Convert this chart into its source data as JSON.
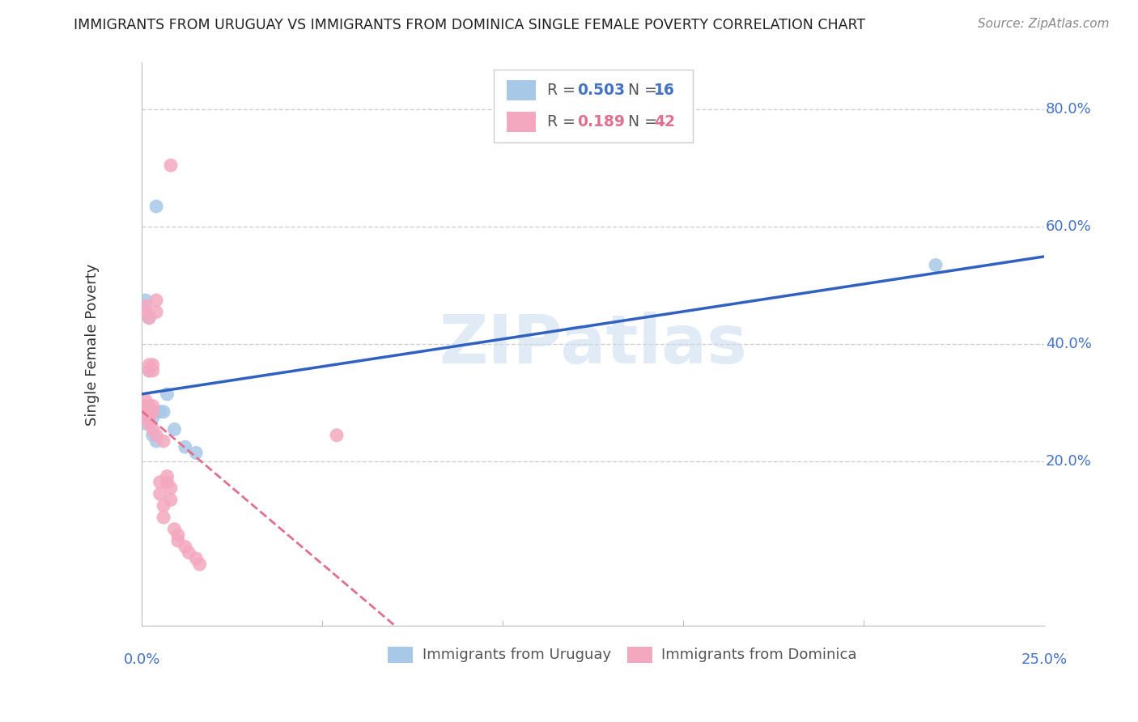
{
  "title": "IMMIGRANTS FROM URUGUAY VS IMMIGRANTS FROM DOMINICA SINGLE FEMALE POVERTY CORRELATION CHART",
  "source": "Source: ZipAtlas.com",
  "ylabel": "Single Female Poverty",
  "xlim": [
    0.0,
    0.25
  ],
  "ylim": [
    -0.08,
    0.88
  ],
  "grid_color": "#d0d0d0",
  "background_color": "#ffffff",
  "uruguay_color": "#a8c8e8",
  "dominica_color": "#f4a8c0",
  "uruguay_line_color": "#3060c0",
  "dominica_line_color": "#e07090",
  "legend_R_uruguay": "0.503",
  "legend_N_uruguay": "16",
  "legend_R_dominica": "0.189",
  "legend_N_dominica": "42",
  "watermark": "ZIPatlas",
  "uruguay_x": [
    0.0005,
    0.001,
    0.001,
    0.002,
    0.002,
    0.003,
    0.003,
    0.004,
    0.005,
    0.006,
    0.007,
    0.009,
    0.012,
    0.015,
    0.22,
    0.004
  ],
  "uruguay_y": [
    0.265,
    0.475,
    0.275,
    0.445,
    0.355,
    0.275,
    0.245,
    0.235,
    0.285,
    0.285,
    0.315,
    0.255,
    0.225,
    0.215,
    0.535,
    0.635
  ],
  "dominica_x": [
    0.0,
    0.0,
    0.001,
    0.001,
    0.001,
    0.001,
    0.001,
    0.001,
    0.001,
    0.002,
    0.002,
    0.002,
    0.002,
    0.002,
    0.002,
    0.002,
    0.003,
    0.003,
    0.003,
    0.003,
    0.003,
    0.004,
    0.004,
    0.004,
    0.005,
    0.005,
    0.006,
    0.006,
    0.007,
    0.007,
    0.008,
    0.008,
    0.009,
    0.01,
    0.01,
    0.012,
    0.013,
    0.015,
    0.016,
    0.006,
    0.008,
    0.054
  ],
  "dominica_y": [
    0.295,
    0.285,
    0.305,
    0.295,
    0.285,
    0.275,
    0.465,
    0.455,
    0.275,
    0.445,
    0.365,
    0.355,
    0.295,
    0.285,
    0.275,
    0.265,
    0.365,
    0.355,
    0.295,
    0.285,
    0.255,
    0.475,
    0.455,
    0.245,
    0.165,
    0.145,
    0.125,
    0.105,
    0.175,
    0.165,
    0.155,
    0.135,
    0.085,
    0.075,
    0.065,
    0.055,
    0.045,
    0.035,
    0.025,
    0.235,
    0.705,
    0.245
  ]
}
